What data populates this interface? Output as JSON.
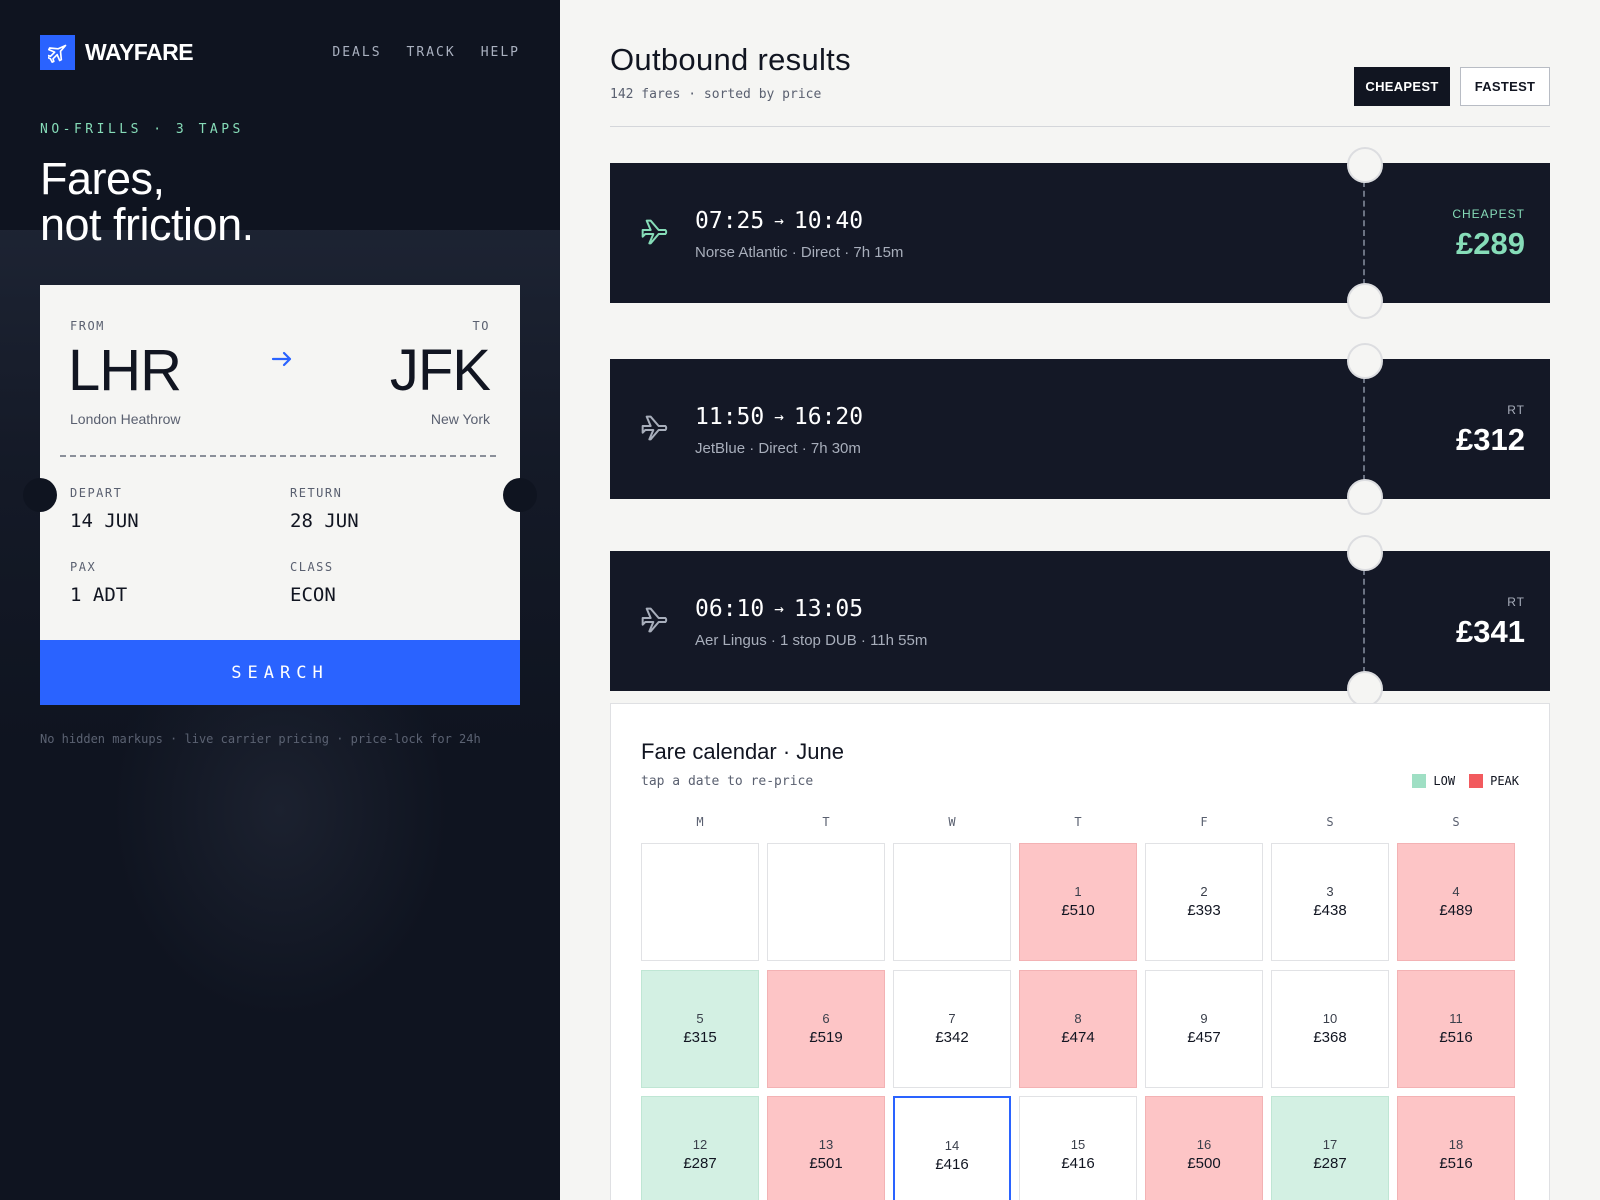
{
  "brand": {
    "name": "WAYFARE"
  },
  "nav": [
    "DEALS",
    "TRACK",
    "HELP"
  ],
  "hero": {
    "eyebrow": "NO-FRILLS · 3 TAPS",
    "line1": "Fares,",
    "line2": "not friction."
  },
  "search": {
    "from_label": "FROM",
    "from_code": "LHR",
    "from_city": "London Heathrow",
    "to_label": "TO",
    "to_code": "JFK",
    "to_city": "New York",
    "depart_label": "DEPART",
    "depart_value": "14 JUN",
    "return_label": "RETURN",
    "return_value": "28 JUN",
    "pax_label": "PAX",
    "pax_value": "1 ADT",
    "class_label": "CLASS",
    "class_value": "ECON",
    "button": "SEARCH"
  },
  "footnote": "No hidden markups · live carrier pricing · price-lock for 24h",
  "results": {
    "title": "Outbound results",
    "subtitle": "142 fares · sorted by price",
    "sort_cheapest": "CHEAPEST",
    "sort_fastest": "FASTEST",
    "fares": [
      {
        "depart": "07:25",
        "arrive": "10:40",
        "meta": "Norse Atlantic · Direct · 7h 15m",
        "tag": "CHEAPEST",
        "price": "£289",
        "highlight": true
      },
      {
        "depart": "11:50",
        "arrive": "16:20",
        "meta": "JetBlue · Direct · 7h 30m",
        "tag": "RT",
        "price": "£312",
        "highlight": false
      },
      {
        "depart": "06:10",
        "arrive": "13:05",
        "meta": "Aer Lingus · 1 stop DUB · 11h 55m",
        "tag": "RT",
        "price": "£341",
        "highlight": false
      }
    ]
  },
  "calendar": {
    "title": "Fare calendar · June",
    "subtitle": "tap a date to re-price",
    "legend_low": "LOW",
    "legend_peak": "PEAK",
    "days_of_week": [
      "M",
      "T",
      "W",
      "T",
      "F",
      "S",
      "S"
    ],
    "days": [
      {
        "day": "1",
        "price": "£510",
        "level": "peak"
      },
      {
        "day": "2",
        "price": "£393",
        "level": "normal"
      },
      {
        "day": "3",
        "price": "£438",
        "level": "normal"
      },
      {
        "day": "4",
        "price": "£489",
        "level": "peak"
      },
      {
        "day": "5",
        "price": "£315",
        "level": "low"
      },
      {
        "day": "6",
        "price": "£519",
        "level": "peak"
      },
      {
        "day": "7",
        "price": "£342",
        "level": "normal"
      },
      {
        "day": "8",
        "price": "£474",
        "level": "peak"
      },
      {
        "day": "9",
        "price": "£457",
        "level": "normal"
      },
      {
        "day": "10",
        "price": "£368",
        "level": "normal"
      },
      {
        "day": "11",
        "price": "£516",
        "level": "peak"
      },
      {
        "day": "12",
        "price": "£287",
        "level": "low"
      },
      {
        "day": "13",
        "price": "£501",
        "level": "peak"
      },
      {
        "day": "14",
        "price": "£416",
        "level": "selected"
      },
      {
        "day": "15",
        "price": "£416",
        "level": "normal"
      },
      {
        "day": "16",
        "price": "£500",
        "level": "peak"
      },
      {
        "day": "17",
        "price": "£287",
        "level": "low"
      },
      {
        "day": "18",
        "price": "£516",
        "level": "peak"
      }
    ]
  },
  "colors": {
    "accent": "#2a63ff",
    "mint": "#86dcb8",
    "dark": "#141826",
    "low": "#d3f0e3",
    "peak": "#fdc5c6",
    "peak_swatch": "#f25a5e",
    "low_swatch": "#9fdfc4"
  }
}
